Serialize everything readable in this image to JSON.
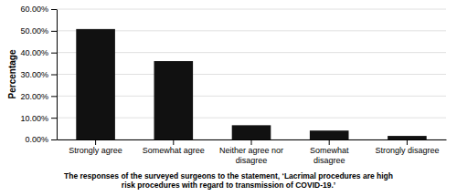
{
  "chart_data": {
    "type": "bar",
    "caption": "The responses of the surveyed surgeons to the statement, ‘Lacrimal procedures are high\nrisk procedures with regard to transmission of COVID-19.’",
    "y_label": "Percentage",
    "categories": [
      "Strongly agree",
      "Somewhat agree",
      "Neither agree nor\ndisagree",
      "Somewhat\ndisagree",
      "Strongly disagree"
    ],
    "values": [
      50.82,
      36.07,
      6.56,
      4.1,
      1.64
    ],
    "color": "#111111",
    "ylim": [
      0,
      60
    ],
    "yticks": [
      {
        "value": 0,
        "label": "0.00%"
      },
      {
        "value": 10,
        "label": "10.00%"
      },
      {
        "value": 20,
        "label": "20.00%"
      },
      {
        "value": 30,
        "label": "30.00%"
      },
      {
        "value": 40,
        "label": "40.00%"
      },
      {
        "value": 50,
        "label": "50.00%"
      },
      {
        "value": 60,
        "label": "60.00%"
      }
    ],
    "grid": true
  }
}
